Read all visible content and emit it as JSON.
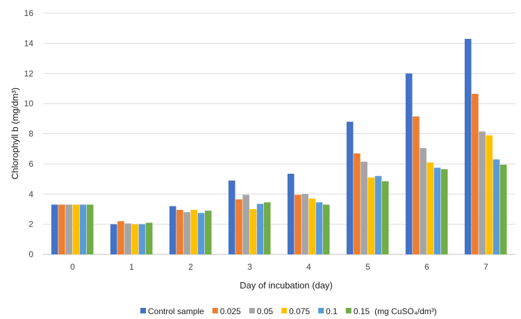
{
  "chart_data": {
    "type": "bar",
    "categories": [
      "0",
      "1",
      "2",
      "3",
      "4",
      "5",
      "6",
      "7"
    ],
    "xlabel": "Day of incubation (day)",
    "ylabel": "Chlorophyll b (mg/dm³)",
    "ylim": [
      0,
      16
    ],
    "yticks": [
      0,
      2,
      4,
      6,
      8,
      10,
      12,
      14,
      16
    ],
    "grid": true,
    "legend_position": "bottom",
    "legend_suffix": "(mg CuSO₄/dm³)",
    "series": [
      {
        "name": "Control sample",
        "color": "#4472C4",
        "values": [
          3.3,
          2.0,
          3.2,
          4.9,
          5.35,
          8.8,
          12.0,
          14.3
        ]
      },
      {
        "name": "0.025",
        "color": "#ED7D31",
        "values": [
          3.3,
          2.2,
          2.95,
          3.65,
          3.95,
          6.7,
          9.15,
          10.65
        ]
      },
      {
        "name": "0.05",
        "color": "#A5A5A5",
        "values": [
          3.3,
          2.05,
          2.8,
          3.95,
          4.0,
          6.15,
          7.05,
          8.15
        ]
      },
      {
        "name": "0.075",
        "color": "#FFC000",
        "values": [
          3.3,
          2.0,
          2.95,
          3.0,
          3.7,
          5.1,
          6.1,
          7.9
        ]
      },
      {
        "name": "0.1",
        "color": "#5B9BD5",
        "values": [
          3.3,
          2.0,
          2.75,
          3.35,
          3.45,
          5.2,
          5.75,
          6.3
        ]
      },
      {
        "name": "0.15",
        "color": "#70AD47",
        "values": [
          3.3,
          2.1,
          2.9,
          3.45,
          3.3,
          4.85,
          5.65,
          5.95
        ]
      }
    ]
  }
}
